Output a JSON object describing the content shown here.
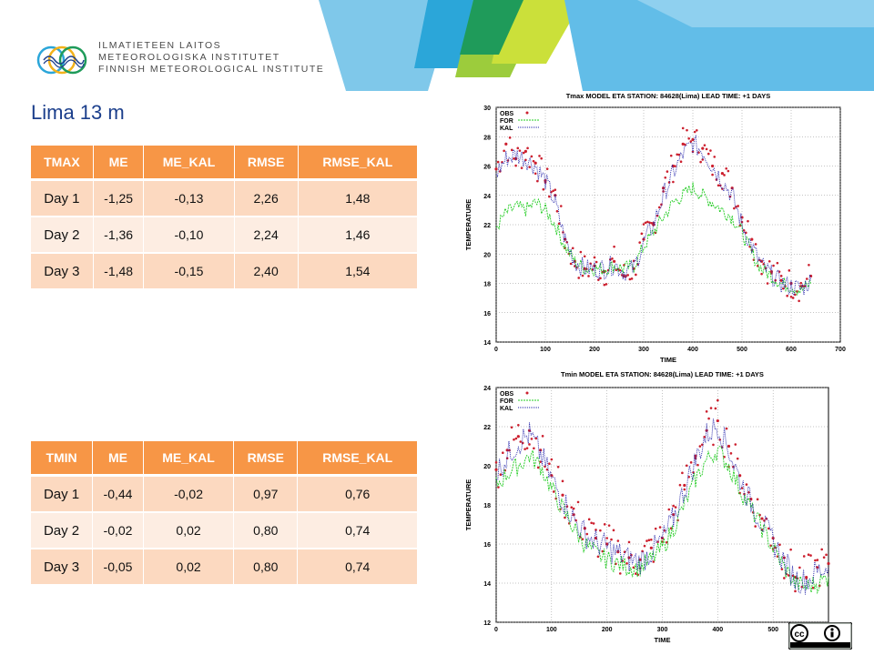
{
  "logo": {
    "line1": "ILMATIETEEN LAITOS",
    "line2": "METEOROLOGISKA INSTITUTET",
    "line3": "FINNISH METEOROLOGICAL INSTITUTE"
  },
  "title": "Lima 13 m",
  "colors": {
    "header_orange": "#f79646",
    "row_odd": "#fcd9c0",
    "row_even": "#fdede2",
    "title_blue": "#1c3f8c",
    "obs": "#cc1f2e",
    "for": "#22cc22",
    "kal": "#2222aa"
  },
  "tmax_table": {
    "headers": [
      "TMAX",
      "ME",
      "ME_KAL",
      "RMSE",
      "RMSE_KAL"
    ],
    "rows": [
      [
        "Day 1",
        "-1,25",
        "-0,13",
        "2,26",
        "1,48"
      ],
      [
        "Day 2",
        "-1,36",
        "-0,10",
        "2,24",
        "1,46"
      ],
      [
        "Day 3",
        "-1,48",
        "-0,15",
        "2,40",
        "1,54"
      ]
    ]
  },
  "tmin_table": {
    "headers": [
      "TMIN",
      "ME",
      "ME_KAL",
      "RMSE",
      "RMSE_KAL"
    ],
    "rows": [
      [
        "Day 1",
        "-0,44",
        "-0,02",
        "0,97",
        "0,76"
      ],
      [
        "Day 2",
        "-0,02",
        "0,02",
        "0,80",
        "0,74"
      ],
      [
        "Day 3",
        "-0,05",
        "0,02",
        "0,80",
        "0,74"
      ]
    ]
  },
  "chart_data": [
    {
      "type": "line",
      "title": "Tmax MODEL ETA STATION: 84628(Lima) LEAD TIME: +1 DAYS",
      "xlabel": "TIME",
      "ylabel": "TEMPERATURE",
      "xlim": [
        0,
        700
      ],
      "ylim": [
        14,
        30
      ],
      "xticks": [
        0,
        100,
        200,
        300,
        400,
        500,
        600,
        700
      ],
      "yticks": [
        14,
        16,
        18,
        20,
        22,
        24,
        26,
        28,
        30
      ],
      "grid": true,
      "legend_position": "top-left",
      "series": [
        {
          "name": "OBS",
          "style": "points",
          "x": [
            0,
            20,
            40,
            60,
            80,
            100,
            120,
            140,
            160,
            180,
            200,
            220,
            240,
            260,
            280,
            300,
            320,
            340,
            360,
            380,
            400,
            420,
            440,
            460,
            480,
            500,
            520,
            540,
            560,
            580,
            600,
            620,
            640
          ],
          "values": [
            25.8,
            27.5,
            26.5,
            27.0,
            26.2,
            25.0,
            24.0,
            21.0,
            19.5,
            19.0,
            19.2,
            18.8,
            19.5,
            18.5,
            19.0,
            21.0,
            22.0,
            24.5,
            26.0,
            27.5,
            27.8,
            27.2,
            26.0,
            25.5,
            24.5,
            22.5,
            21.0,
            19.5,
            18.8,
            18.2,
            18.0,
            17.8,
            18.5
          ]
        },
        {
          "name": "FOR",
          "style": "dashed",
          "x": [
            0,
            20,
            40,
            60,
            80,
            100,
            120,
            140,
            160,
            180,
            200,
            220,
            240,
            260,
            280,
            300,
            320,
            340,
            360,
            380,
            400,
            420,
            440,
            460,
            480,
            500,
            520,
            540,
            560,
            580,
            600,
            620,
            640
          ],
          "values": [
            21.8,
            22.8,
            23.2,
            23.0,
            23.5,
            23.0,
            22.0,
            20.5,
            19.5,
            19.0,
            19.0,
            19.0,
            19.2,
            19.0,
            19.2,
            20.5,
            21.5,
            22.5,
            23.5,
            24.0,
            24.5,
            24.0,
            23.5,
            23.0,
            22.5,
            21.5,
            20.0,
            19.0,
            18.5,
            18.0,
            17.8,
            17.5,
            18.0
          ]
        },
        {
          "name": "KAL",
          "style": "dotted",
          "x": [
            0,
            20,
            40,
            60,
            80,
            100,
            120,
            140,
            160,
            180,
            200,
            220,
            240,
            260,
            280,
            300,
            320,
            340,
            360,
            380,
            400,
            420,
            440,
            460,
            480,
            500,
            520,
            540,
            560,
            580,
            600,
            620,
            640
          ],
          "values": [
            25.5,
            26.5,
            26.8,
            26.5,
            26.0,
            25.0,
            23.5,
            21.0,
            19.5,
            19.0,
            19.0,
            19.0,
            19.3,
            18.8,
            19.0,
            20.8,
            22.0,
            24.0,
            25.5,
            26.8,
            27.5,
            27.0,
            26.0,
            25.0,
            24.0,
            22.0,
            20.5,
            19.2,
            18.6,
            18.0,
            17.8,
            17.6,
            18.2
          ]
        }
      ]
    },
    {
      "type": "line",
      "title": "Tmin MODEL ETA STATION: 84628(Lima) LEAD TIME: +1 DAYS",
      "xlabel": "TIME",
      "ylabel": "TEMPERATURE",
      "xlim": [
        0,
        600
      ],
      "ylim": [
        12,
        24
      ],
      "xticks": [
        0,
        100,
        200,
        300,
        400,
        500
      ],
      "yticks": [
        12,
        14,
        16,
        18,
        20,
        22,
        24
      ],
      "grid": true,
      "legend_position": "top-left",
      "series": [
        {
          "name": "OBS",
          "style": "points",
          "x": [
            0,
            20,
            40,
            60,
            80,
            100,
            120,
            140,
            160,
            180,
            200,
            220,
            240,
            260,
            280,
            300,
            320,
            340,
            360,
            380,
            400,
            420,
            440,
            460,
            480,
            500,
            520,
            540,
            560,
            580,
            600
          ],
          "values": [
            19.8,
            20.8,
            21.5,
            21.8,
            20.8,
            19.5,
            18.5,
            17.5,
            16.8,
            16.3,
            16.0,
            15.6,
            15.3,
            15.2,
            15.8,
            16.3,
            17.5,
            19.0,
            20.5,
            21.8,
            22.3,
            21.0,
            19.5,
            18.3,
            17.3,
            16.3,
            15.3,
            14.3,
            14.3,
            14.8,
            15.0
          ]
        },
        {
          "name": "FOR",
          "style": "dashed",
          "x": [
            0,
            20,
            40,
            60,
            80,
            100,
            120,
            140,
            160,
            180,
            200,
            220,
            240,
            260,
            280,
            300,
            320,
            340,
            360,
            380,
            400,
            420,
            440,
            460,
            480,
            500,
            520,
            540,
            560,
            580,
            600
          ],
          "values": [
            19.0,
            19.6,
            20.0,
            20.5,
            20.0,
            18.8,
            17.8,
            16.8,
            16.0,
            15.5,
            15.2,
            15.0,
            14.8,
            14.8,
            15.2,
            15.8,
            16.8,
            18.0,
            19.3,
            20.3,
            20.8,
            20.0,
            18.8,
            17.8,
            16.8,
            15.8,
            14.8,
            14.0,
            13.8,
            14.0,
            14.3
          ]
        },
        {
          "name": "KAL",
          "style": "dotted",
          "x": [
            0,
            20,
            40,
            60,
            80,
            100,
            120,
            140,
            160,
            180,
            200,
            220,
            240,
            260,
            280,
            300,
            320,
            340,
            360,
            380,
            400,
            420,
            440,
            460,
            480,
            500,
            520,
            540,
            560,
            580,
            600
          ],
          "values": [
            19.6,
            20.5,
            21.2,
            21.6,
            20.6,
            19.3,
            18.3,
            17.3,
            16.5,
            16.1,
            15.8,
            15.5,
            15.2,
            15.1,
            15.6,
            16.2,
            17.3,
            18.8,
            20.3,
            21.6,
            22.1,
            20.8,
            19.3,
            18.1,
            17.1,
            16.1,
            15.1,
            14.2,
            14.1,
            14.6,
            14.8
          ]
        }
      ]
    }
  ]
}
